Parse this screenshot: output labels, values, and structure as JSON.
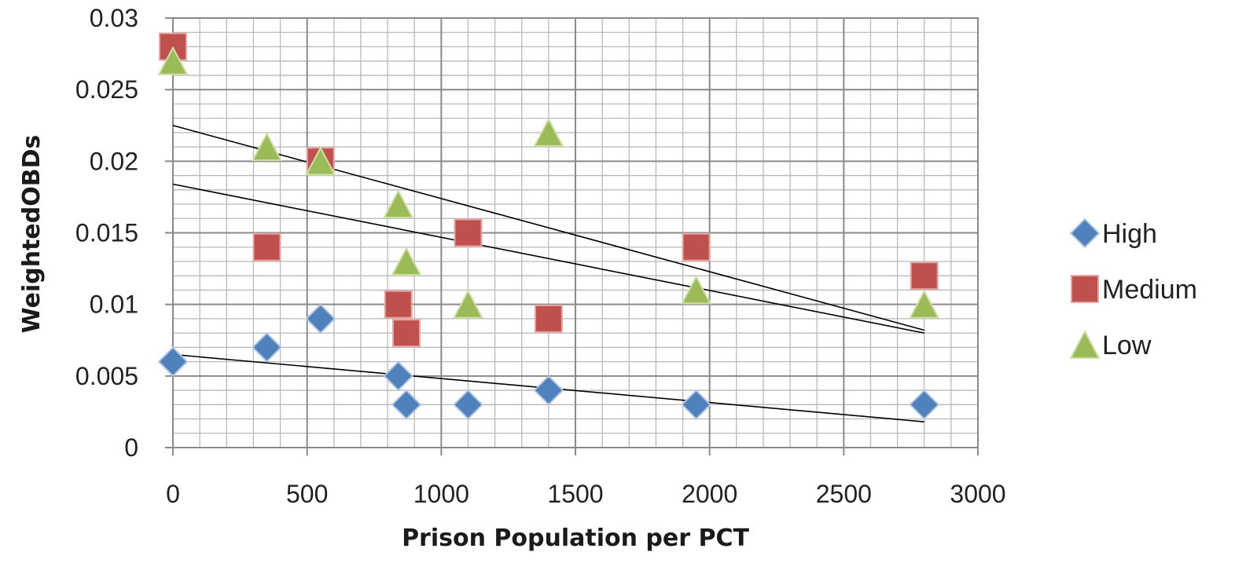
{
  "chart_data": {
    "type": "scatter",
    "xlabel": "Prison Population per PCT",
    "ylabel": "WeightedOBDs",
    "xlim": [
      0,
      3000
    ],
    "ylim": [
      0,
      0.03
    ],
    "x_ticks": [
      "0",
      "500",
      "1000",
      "1500",
      "2000",
      "2500",
      "3000"
    ],
    "y_ticks": [
      "0",
      "0.005",
      "0.01",
      "0.015",
      "0.02",
      "0.025",
      "0.03"
    ],
    "grid": true,
    "legend_position": "right",
    "series": [
      {
        "name": "High",
        "marker": "diamond",
        "color": "#4F81BD",
        "points": [
          [
            0,
            0.006
          ],
          [
            350,
            0.007
          ],
          [
            550,
            0.009
          ],
          [
            840,
            0.005
          ],
          [
            870,
            0.003
          ],
          [
            1100,
            0.003
          ],
          [
            1400,
            0.004
          ],
          [
            1950,
            0.003
          ],
          [
            2800,
            0.003
          ]
        ],
        "trend": [
          [
            0,
            0.0065
          ],
          [
            2800,
            0.0018
          ]
        ]
      },
      {
        "name": "Medium",
        "marker": "square",
        "color": "#C0504D",
        "points": [
          [
            0,
            0.028
          ],
          [
            350,
            0.014
          ],
          [
            550,
            0.02
          ],
          [
            840,
            0.01
          ],
          [
            870,
            0.008
          ],
          [
            1100,
            0.015
          ],
          [
            1400,
            0.009
          ],
          [
            1950,
            0.014
          ],
          [
            2800,
            0.012
          ]
        ],
        "trend": [
          [
            0,
            0.0184
          ],
          [
            2800,
            0.008
          ]
        ]
      },
      {
        "name": "Low",
        "marker": "triangle",
        "color": "#9BBB59",
        "points": [
          [
            0,
            0.027
          ],
          [
            350,
            0.021
          ],
          [
            550,
            0.02
          ],
          [
            840,
            0.017
          ],
          [
            870,
            0.013
          ],
          [
            1100,
            0.01
          ],
          [
            1400,
            0.022
          ],
          [
            1950,
            0.011
          ],
          [
            2800,
            0.01
          ]
        ],
        "trend": [
          [
            0,
            0.0225
          ],
          [
            2800,
            0.0082
          ]
        ]
      }
    ]
  }
}
